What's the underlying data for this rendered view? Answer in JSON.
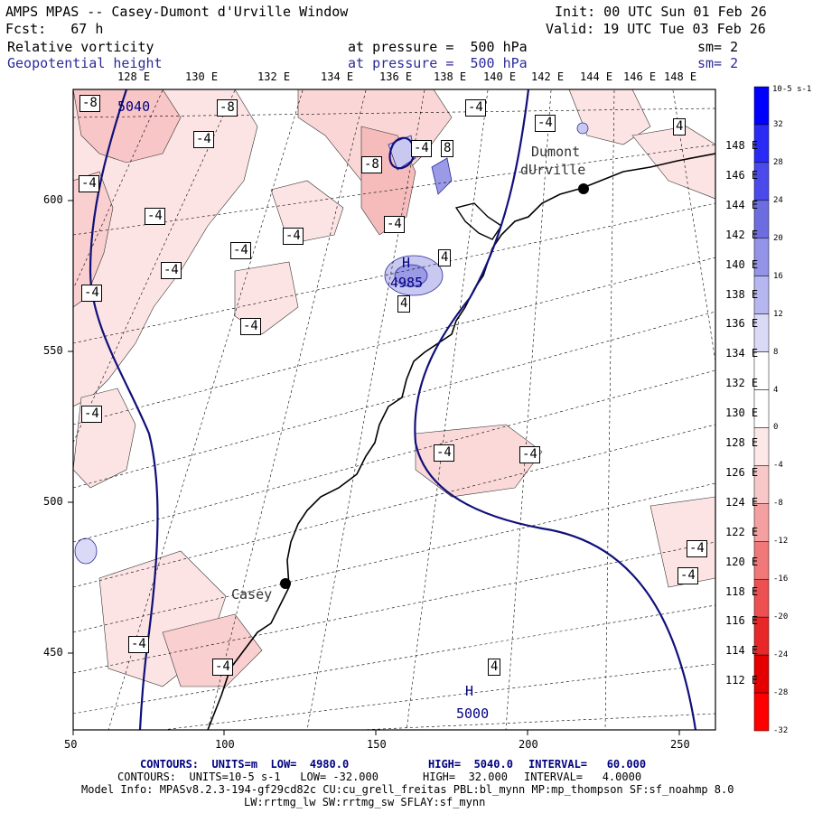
{
  "header": {
    "title": "AMPS MPAS -- Casey-Dumont d'Urville Window",
    "init": "Init: 00 UTC Sun 01 Feb 26",
    "fcst": "Fcst:   67 h",
    "valid": "Valid: 19 UTC Tue 03 Feb 26",
    "field1_name": "Relative vorticity",
    "field1_pressure": "at pressure =  500 hPa",
    "field1_sm": "sm= 2",
    "field2_name": "Geopotential height",
    "field2_pressure": "at pressure =  500 hPa",
    "field2_sm": "sm= 2"
  },
  "map": {
    "top_lon_labels": [
      "128 E",
      "130 E",
      "132 E",
      "134 E",
      "136 E",
      "138 E",
      "140 E",
      "142 E",
      "144 E",
      "146 E",
      "148 E"
    ],
    "right_lat_labels": [
      "148 E",
      "146 E",
      "144 E",
      "142 E",
      "140 E",
      "138 E",
      "136 E",
      "134 E",
      "132 E",
      "130 E",
      "128 E",
      "126 E",
      "124 E",
      "122 E",
      "120 E",
      "118 E",
      "116 E",
      "114 E",
      "112 E"
    ],
    "x_axis": {
      "ticks": [
        "50",
        "100",
        "150",
        "200",
        "250"
      ]
    },
    "y_axis": {
      "ticks": [
        "600",
        "550",
        "500",
        "450"
      ]
    },
    "places": [
      {
        "name": "Dumont",
        "name2": "dUrville"
      },
      {
        "name": "Casey"
      }
    ],
    "height_labels": [
      "5040",
      "4985",
      "5000"
    ],
    "height_markers": [
      "H",
      "H"
    ],
    "vort_labels": [
      "-8",
      "-8",
      "-4",
      "-4",
      "-4",
      "-4",
      "-4",
      "-4",
      "-4",
      "-4",
      "-4",
      "-4",
      "-4",
      "-4",
      "-8",
      "-4",
      "4",
      "-4",
      "8",
      "-4",
      "4",
      "4",
      "-4",
      "-4",
      "-4",
      "-4",
      "4"
    ]
  },
  "colorbar": {
    "unit_label": "10-5 s-1",
    "ticks": [
      "32",
      "28",
      "24",
      "20",
      "16",
      "12",
      "8",
      "4",
      "0",
      "-4",
      "-8",
      "-12",
      "-16",
      "-20",
      "-24",
      "-28",
      "-32"
    ],
    "colors": [
      "#0000ff",
      "#2a2af5",
      "#4a4aeb",
      "#6d6de0",
      "#9393e8",
      "#b6b6f0",
      "#dadaf7",
      "#ffffff",
      "#ffffff",
      "#fde8e8",
      "#f8c8c8",
      "#f4a0a0",
      "#f07878",
      "#ec5050",
      "#e82828",
      "#e40000",
      "#ff0000"
    ]
  },
  "footer": {
    "contours1_label": "CONTOURS:  UNITS=m  LOW=  4980.0",
    "contours1_high": "HIGH=  5040.0",
    "contours1_interval": "INTERVAL=   60.000",
    "contours2_label": "CONTOURS:  UNITS=10-5 s-1   LOW= -32.000",
    "contours2_high": "HIGH=  32.000",
    "contours2_interval": "INTERVAL=   4.0000",
    "model_info": "Model Info: MPASv8.2.3-194-gf29cd82c CU:cu_grell_freitas PBL:bl_mynn MP:mp_thompson SF:sf_noahmp 8.0",
    "model_info2": "LW:rrtmg_lw SW:rrtmg_sw SFLAY:sf_mynn"
  }
}
